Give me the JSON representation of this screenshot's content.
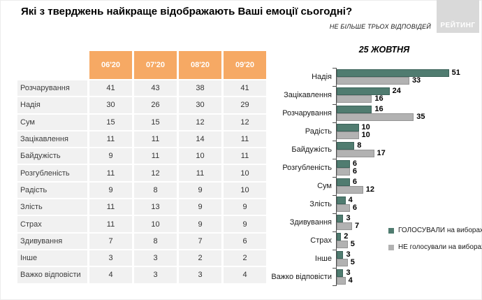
{
  "title": "Які з тверджень найкраще відображають Ваші емоції сьогодні?",
  "note": "НЕ БІЛЬШЕ ТРЬОХ ВІДПОВІДЕЙ",
  "logo": "РЕЙТИНГ",
  "colors": {
    "header_orange": "#F6A964",
    "voted_green": "#507C70",
    "not_voted_gray": "#B2B2B2",
    "row_bg": "#F1F1F1",
    "logo_bg": "#D9D9D9"
  },
  "table": {
    "columns": [
      "06'20",
      "07'20",
      "08'20",
      "09'20"
    ],
    "rows": [
      {
        "label": "Розчарування",
        "values": [
          41,
          43,
          38,
          41
        ]
      },
      {
        "label": "Надія",
        "values": [
          30,
          26,
          30,
          29
        ]
      },
      {
        "label": "Сум",
        "values": [
          15,
          15,
          12,
          12
        ]
      },
      {
        "label": "Зацікавлення",
        "values": [
          11,
          11,
          14,
          11
        ]
      },
      {
        "label": "Байдужість",
        "values": [
          9,
          11,
          10,
          11
        ]
      },
      {
        "label": "Розгубленість",
        "values": [
          11,
          12,
          11,
          10
        ]
      },
      {
        "label": "Радість",
        "values": [
          9,
          8,
          9,
          10
        ]
      },
      {
        "label": "Злість",
        "values": [
          11,
          13,
          9,
          9
        ]
      },
      {
        "label": "Страх",
        "values": [
          11,
          10,
          9,
          9
        ]
      },
      {
        "label": "Здивування",
        "values": [
          7,
          8,
          7,
          6
        ]
      },
      {
        "label": "Інше",
        "values": [
          3,
          3,
          2,
          2
        ]
      },
      {
        "label": "Важко відповісти",
        "values": [
          4,
          3,
          3,
          4
        ]
      }
    ]
  },
  "chart_data": {
    "type": "bar",
    "orientation": "horizontal",
    "title": "25 ЖОВТНЯ",
    "categories": [
      "Надія",
      "Зацікавлення",
      "Розчарування",
      "Радість",
      "Байдужість",
      "Розгубленість",
      "Сум",
      "Злість",
      "Здивування",
      "Страх",
      "Інше",
      "Важко відповісти"
    ],
    "series": [
      {
        "name": "ГОЛОСУВАЛИ на виборах",
        "color": "#507C70",
        "values": [
          51,
          24,
          16,
          10,
          8,
          6,
          6,
          4,
          3,
          2,
          3,
          3
        ]
      },
      {
        "name": "НЕ голосували на виборах",
        "color": "#B2B2B2",
        "values": [
          33,
          16,
          35,
          10,
          17,
          6,
          12,
          6,
          7,
          5,
          5,
          4
        ]
      }
    ],
    "xlim": [
      0,
      55
    ],
    "value_labels": true,
    "grid": false,
    "legend_position": "right"
  }
}
